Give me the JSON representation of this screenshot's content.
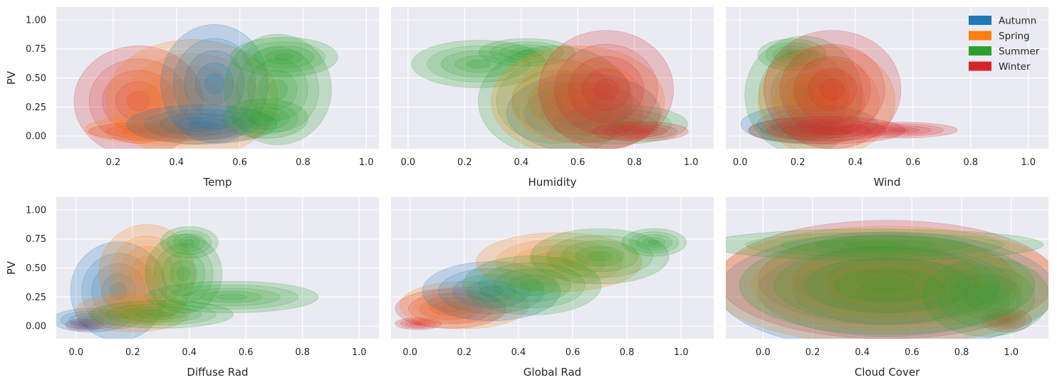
{
  "chart_data": [
    {
      "type": "kde-contour",
      "xlabel": "Temp",
      "ylabel": "PV",
      "xticks": [
        "0.2",
        "0.4",
        "0.6",
        "0.8",
        "1.0"
      ],
      "yticks": [
        "0.00",
        "0.25",
        "0.50",
        "0.75",
        "1.00"
      ],
      "xlim": [
        0.02,
        1.04
      ],
      "ylim": [
        -0.11,
        1.11
      ],
      "grid": true,
      "blobs": [
        {
          "series": "Winter",
          "x": 0.36,
          "y": 0.04,
          "sx": 0.14,
          "sy": 0.05
        },
        {
          "series": "Winter",
          "x": 0.28,
          "y": 0.3,
          "sx": 0.12,
          "sy": 0.28
        },
        {
          "series": "Spring",
          "x": 0.4,
          "y": 0.06,
          "sx": 0.17,
          "sy": 0.08
        },
        {
          "series": "Spring",
          "x": 0.45,
          "y": 0.32,
          "sx": 0.16,
          "sy": 0.3
        },
        {
          "series": "Autumn",
          "x": 0.48,
          "y": 0.1,
          "sx": 0.14,
          "sy": 0.1
        },
        {
          "series": "Autumn",
          "x": 0.52,
          "y": 0.45,
          "sx": 0.1,
          "sy": 0.3
        },
        {
          "series": "Summer",
          "x": 0.68,
          "y": 0.15,
          "sx": 0.08,
          "sy": 0.1
        },
        {
          "series": "Summer",
          "x": 0.74,
          "y": 0.68,
          "sx": 0.1,
          "sy": 0.1
        },
        {
          "series": "Summer",
          "x": 0.72,
          "y": 0.4,
          "sx": 0.1,
          "sy": 0.28
        }
      ]
    },
    {
      "type": "kde-contour",
      "xlabel": "Humidity",
      "ylabel": "",
      "xticks": [
        "0.0",
        "0.2",
        "0.4",
        "0.6",
        "0.8",
        "1.0"
      ],
      "xlim": [
        -0.06,
        1.08
      ],
      "ylim": [
        -0.11,
        1.11
      ],
      "grid": true,
      "blobs": [
        {
          "series": "Summer",
          "x": 0.42,
          "y": 0.72,
          "sx": 0.1,
          "sy": 0.07
        },
        {
          "series": "Summer",
          "x": 0.25,
          "y": 0.62,
          "sx": 0.14,
          "sy": 0.12
        },
        {
          "series": "Summer",
          "x": 0.52,
          "y": 0.3,
          "sx": 0.16,
          "sy": 0.28
        },
        {
          "series": "Summer",
          "x": 0.75,
          "y": 0.1,
          "sx": 0.14,
          "sy": 0.1
        },
        {
          "series": "Autumn",
          "x": 0.62,
          "y": 0.2,
          "sx": 0.16,
          "sy": 0.2
        },
        {
          "series": "Spring",
          "x": 0.6,
          "y": 0.3,
          "sx": 0.18,
          "sy": 0.28
        },
        {
          "series": "Winter",
          "x": 0.82,
          "y": 0.04,
          "sx": 0.1,
          "sy": 0.05
        },
        {
          "series": "Winter",
          "x": 0.7,
          "y": 0.4,
          "sx": 0.14,
          "sy": 0.3
        }
      ]
    },
    {
      "type": "kde-contour",
      "xlabel": "Wind",
      "ylabel": "",
      "xticks": [
        "0.0",
        "0.2",
        "0.4",
        "0.6",
        "0.8",
        "1.0"
      ],
      "xlim": [
        -0.05,
        1.07
      ],
      "ylim": [
        -0.11,
        1.11
      ],
      "grid": true,
      "blobs": [
        {
          "series": "Summer",
          "x": 0.18,
          "y": 0.7,
          "sx": 0.07,
          "sy": 0.08
        },
        {
          "series": "Summer",
          "x": 0.22,
          "y": 0.35,
          "sx": 0.12,
          "sy": 0.3
        },
        {
          "series": "Summer",
          "x": 0.2,
          "y": 0.05,
          "sx": 0.1,
          "sy": 0.06
        },
        {
          "series": "Autumn",
          "x": 0.24,
          "y": 0.1,
          "sx": 0.14,
          "sy": 0.1
        },
        {
          "series": "Spring",
          "x": 0.3,
          "y": 0.3,
          "sx": 0.14,
          "sy": 0.28
        },
        {
          "series": "Winter",
          "x": 0.3,
          "y": 0.05,
          "sx": 0.16,
          "sy": 0.07
        },
        {
          "series": "Winter",
          "x": 0.55,
          "y": 0.05,
          "sx": 0.12,
          "sy": 0.04
        },
        {
          "series": "Winter",
          "x": 0.32,
          "y": 0.4,
          "sx": 0.14,
          "sy": 0.3
        }
      ]
    },
    {
      "type": "kde-contour",
      "xlabel": "Diffuse Rad",
      "ylabel": "PV",
      "xticks": [
        "0.0",
        "0.2",
        "0.4",
        "0.6",
        "0.8",
        "1.0"
      ],
      "yticks": [
        "0.00",
        "0.25",
        "0.50",
        "0.75",
        "1.00"
      ],
      "xlim": [
        -0.07,
        1.07
      ],
      "ylim": [
        -0.11,
        1.11
      ],
      "grid": true,
      "blobs": [
        {
          "series": "Winter",
          "x": 0.03,
          "y": 0.01,
          "sx": 0.04,
          "sy": 0.03
        },
        {
          "series": "Autumn",
          "x": 0.05,
          "y": 0.05,
          "sx": 0.08,
          "sy": 0.06
        },
        {
          "series": "Autumn",
          "x": 0.15,
          "y": 0.3,
          "sx": 0.1,
          "sy": 0.25
        },
        {
          "series": "Spring",
          "x": 0.2,
          "y": 0.12,
          "sx": 0.12,
          "sy": 0.1
        },
        {
          "series": "Spring",
          "x": 0.25,
          "y": 0.45,
          "sx": 0.1,
          "sy": 0.25
        },
        {
          "series": "Summer",
          "x": 0.4,
          "y": 0.72,
          "sx": 0.06,
          "sy": 0.08
        },
        {
          "series": "Summer",
          "x": 0.38,
          "y": 0.45,
          "sx": 0.08,
          "sy": 0.2
        },
        {
          "series": "Summer",
          "x": 0.55,
          "y": 0.25,
          "sx": 0.18,
          "sy": 0.08
        },
        {
          "series": "Summer",
          "x": 0.3,
          "y": 0.1,
          "sx": 0.15,
          "sy": 0.07
        }
      ]
    },
    {
      "type": "kde-contour",
      "xlabel": "Global Rad",
      "ylabel": "",
      "xticks": [
        "0.0",
        "0.2",
        "0.4",
        "0.6",
        "0.8",
        "1.0"
      ],
      "xlim": [
        -0.07,
        1.12
      ],
      "ylim": [
        -0.11,
        1.11
      ],
      "grid": true,
      "blobs": [
        {
          "series": "Winter",
          "x": 0.03,
          "y": 0.02,
          "sx": 0.05,
          "sy": 0.03
        },
        {
          "series": "Winter",
          "x": 0.15,
          "y": 0.15,
          "sx": 0.12,
          "sy": 0.1
        },
        {
          "series": "Spring",
          "x": 0.2,
          "y": 0.18,
          "sx": 0.14,
          "sy": 0.12
        },
        {
          "series": "Autumn",
          "x": 0.3,
          "y": 0.3,
          "sx": 0.15,
          "sy": 0.15
        },
        {
          "series": "Spring",
          "x": 0.55,
          "y": 0.55,
          "sx": 0.18,
          "sy": 0.15
        },
        {
          "series": "Summer",
          "x": 0.45,
          "y": 0.35,
          "sx": 0.15,
          "sy": 0.15
        },
        {
          "series": "Summer",
          "x": 0.7,
          "y": 0.6,
          "sx": 0.15,
          "sy": 0.14
        },
        {
          "series": "Summer",
          "x": 0.9,
          "y": 0.72,
          "sx": 0.07,
          "sy": 0.07
        }
      ]
    },
    {
      "type": "kde-contour",
      "xlabel": "Cloud Cover",
      "ylabel": "",
      "xticks": [
        "0.0",
        "0.2",
        "0.4",
        "0.6",
        "0.8",
        "1.0"
      ],
      "xlim": [
        -0.15,
        1.15
      ],
      "ylim": [
        -0.11,
        1.11
      ],
      "grid": true,
      "blobs": [
        {
          "series": "Winter",
          "x": 0.98,
          "y": 0.05,
          "sx": 0.06,
          "sy": 0.06
        },
        {
          "series": "Winter",
          "x": 0.5,
          "y": 0.4,
          "sx": 0.4,
          "sy": 0.3
        },
        {
          "series": "Autumn",
          "x": 0.5,
          "y": 0.3,
          "sx": 0.4,
          "sy": 0.3
        },
        {
          "series": "Spring",
          "x": 0.5,
          "y": 0.35,
          "sx": 0.42,
          "sy": 0.3
        },
        {
          "series": "Summer",
          "x": 0.45,
          "y": 0.7,
          "sx": 0.4,
          "sy": 0.08
        },
        {
          "series": "Summer",
          "x": 0.9,
          "y": 0.25,
          "sx": 0.15,
          "sy": 0.2
        },
        {
          "series": "Summer",
          "x": 0.5,
          "y": 0.35,
          "sx": 0.35,
          "sy": 0.25
        }
      ]
    }
  ],
  "legend": {
    "placement": "top-right",
    "items": [
      {
        "name": "Autumn",
        "color": "#1f77b4"
      },
      {
        "name": "Spring",
        "color": "#ff7f0e"
      },
      {
        "name": "Summer",
        "color": "#2ca02c"
      },
      {
        "name": "Winter",
        "color": "#d62728"
      }
    ]
  },
  "colors": {
    "background": "#eaeaf2",
    "grid": "#ffffff",
    "Autumn": "#1f77b4",
    "Spring": "#ff7f0e",
    "Summer": "#2ca02c",
    "Winter": "#d62728"
  }
}
